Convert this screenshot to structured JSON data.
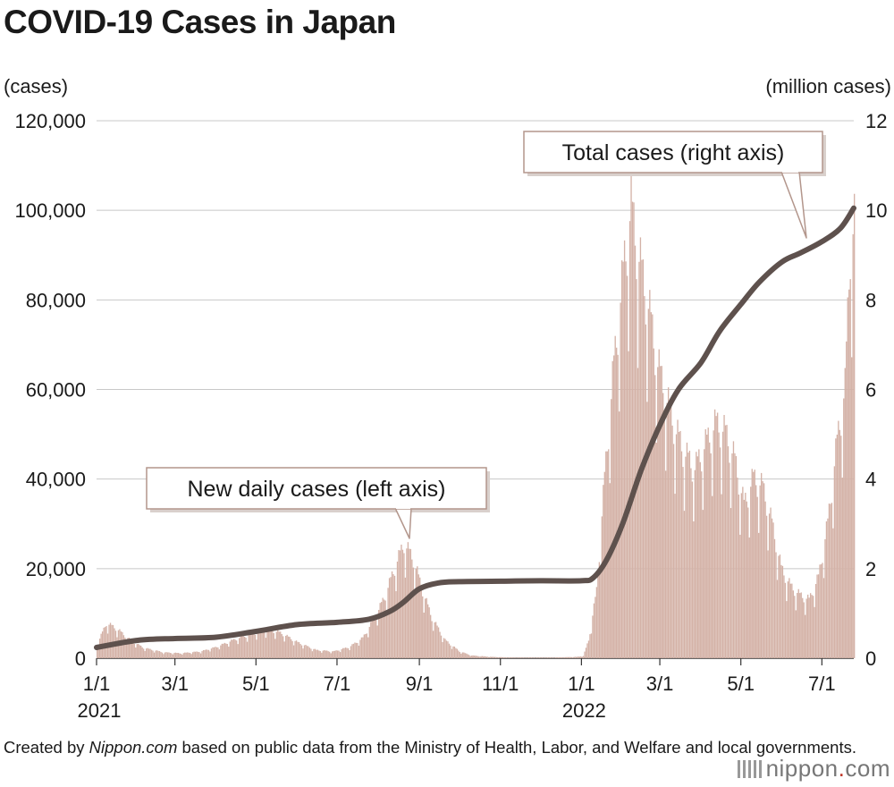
{
  "title": "COVID-19 Cases in Japan",
  "footer": {
    "credit_prefix": "Created by ",
    "credit_source": "Nippon.com",
    "credit_suffix": " based on public data from the Ministry of Health, Labor, and Welfare and local governments."
  },
  "logo": {
    "text": "nippon",
    "dot": ".",
    "suffix": "com"
  },
  "chart_data": {
    "type": "bar+line",
    "title": "COVID-19 Cases in Japan",
    "left_axis": {
      "unit_label": "(cases)",
      "ylim": [
        0,
        120000
      ],
      "ticks": [
        {
          "value": 0,
          "label": "0"
        },
        {
          "value": 20000,
          "label": "20,000"
        },
        {
          "value": 40000,
          "label": "40,000"
        },
        {
          "value": 60000,
          "label": "60,000"
        },
        {
          "value": 80000,
          "label": "80,000"
        },
        {
          "value": 100000,
          "label": "100,000"
        },
        {
          "value": 120000,
          "label": "120,000"
        }
      ]
    },
    "right_axis": {
      "unit_label": "(million cases)",
      "ylim": [
        0,
        12
      ],
      "ticks": [
        {
          "value": 0,
          "label": "0"
        },
        {
          "value": 2,
          "label": "2"
        },
        {
          "value": 4,
          "label": "4"
        },
        {
          "value": 6,
          "label": "6"
        },
        {
          "value": 8,
          "label": "8"
        },
        {
          "value": 10,
          "label": "10"
        },
        {
          "value": 12,
          "label": "12"
        }
      ]
    },
    "x_range": [
      "2021-01-01",
      "2022-07-25"
    ],
    "x_ticks": [
      {
        "date": "2021-01-01",
        "label": "1/1",
        "year": "2021"
      },
      {
        "date": "2021-03-01",
        "label": "3/1"
      },
      {
        "date": "2021-05-01",
        "label": "5/1"
      },
      {
        "date": "2021-07-01",
        "label": "7/1"
      },
      {
        "date": "2021-09-01",
        "label": "9/1"
      },
      {
        "date": "2021-11-01",
        "label": "11/1"
      },
      {
        "date": "2022-01-01",
        "label": "1/1",
        "year": "2022"
      },
      {
        "date": "2022-03-01",
        "label": "3/1"
      },
      {
        "date": "2022-05-01",
        "label": "5/1"
      },
      {
        "date": "2022-07-01",
        "label": "7/1"
      }
    ],
    "grid": true,
    "series": [
      {
        "name": "New daily cases (left axis)",
        "type": "bar",
        "axis": "left",
        "color": "#d4b2a7",
        "points": [
          [
            "2021-01-01",
            3000
          ],
          [
            "2021-01-08",
            7800
          ],
          [
            "2021-01-16",
            6500
          ],
          [
            "2021-01-26",
            4000
          ],
          [
            "2021-02-05",
            2300
          ],
          [
            "2021-02-20",
            1300
          ],
          [
            "2021-03-05",
            1100
          ],
          [
            "2021-03-20",
            1500
          ],
          [
            "2021-04-01",
            2500
          ],
          [
            "2021-04-15",
            4200
          ],
          [
            "2021-04-28",
            5500
          ],
          [
            "2021-05-10",
            6500
          ],
          [
            "2021-05-20",
            5500
          ],
          [
            "2021-06-01",
            3500
          ],
          [
            "2021-06-15",
            1800
          ],
          [
            "2021-06-28",
            1500
          ],
          [
            "2021-07-10",
            2500
          ],
          [
            "2021-07-20",
            4500
          ],
          [
            "2021-07-30",
            9500
          ],
          [
            "2021-08-06",
            14000
          ],
          [
            "2021-08-13",
            20000
          ],
          [
            "2021-08-20",
            25500
          ],
          [
            "2021-08-27",
            22000
          ],
          [
            "2021-09-03",
            15000
          ],
          [
            "2021-09-10",
            9000
          ],
          [
            "2021-09-20",
            4000
          ],
          [
            "2021-10-01",
            1500
          ],
          [
            "2021-10-10",
            600
          ],
          [
            "2021-10-25",
            300
          ],
          [
            "2021-11-10",
            150
          ],
          [
            "2021-12-10",
            150
          ],
          [
            "2021-12-28",
            300
          ],
          [
            "2022-01-02",
            500
          ],
          [
            "2022-01-06",
            4000
          ],
          [
            "2022-01-12",
            15000
          ],
          [
            "2022-01-18",
            40000
          ],
          [
            "2022-01-25",
            65000
          ],
          [
            "2022-02-02",
            88000
          ],
          [
            "2022-02-07",
            100000
          ],
          [
            "2022-02-12",
            90000
          ],
          [
            "2022-02-20",
            78000
          ],
          [
            "2022-02-27",
            65000
          ],
          [
            "2022-03-06",
            57000
          ],
          [
            "2022-03-13",
            50000
          ],
          [
            "2022-03-20",
            45000
          ],
          [
            "2022-03-27",
            42000
          ],
          [
            "2022-04-05",
            48000
          ],
          [
            "2022-04-12",
            52000
          ],
          [
            "2022-04-19",
            50000
          ],
          [
            "2022-04-26",
            44000
          ],
          [
            "2022-05-03",
            34000
          ],
          [
            "2022-05-10",
            40000
          ],
          [
            "2022-05-17",
            38000
          ],
          [
            "2022-05-24",
            30000
          ],
          [
            "2022-05-31",
            20000
          ],
          [
            "2022-06-07",
            16000
          ],
          [
            "2022-06-14",
            14000
          ],
          [
            "2022-06-21",
            13000
          ],
          [
            "2022-06-28",
            18000
          ],
          [
            "2022-07-05",
            30000
          ],
          [
            "2022-07-12",
            48000
          ],
          [
            "2022-07-18",
            60000
          ],
          [
            "2022-07-22",
            92000
          ],
          [
            "2022-07-25",
            96000
          ]
        ]
      },
      {
        "name": "Total cases (right axis)",
        "type": "line",
        "axis": "right",
        "color": "#5e514d",
        "points": [
          [
            "2021-01-01",
            0.24
          ],
          [
            "2021-02-01",
            0.4
          ],
          [
            "2021-03-01",
            0.44
          ],
          [
            "2021-04-01",
            0.47
          ],
          [
            "2021-05-01",
            0.6
          ],
          [
            "2021-06-01",
            0.75
          ],
          [
            "2021-07-01",
            0.8
          ],
          [
            "2021-07-25",
            0.87
          ],
          [
            "2021-08-10",
            1.05
          ],
          [
            "2021-08-20",
            1.25
          ],
          [
            "2021-09-01",
            1.55
          ],
          [
            "2021-09-15",
            1.68
          ],
          [
            "2021-10-01",
            1.71
          ],
          [
            "2021-11-01",
            1.72
          ],
          [
            "2021-12-01",
            1.73
          ],
          [
            "2022-01-01",
            1.73
          ],
          [
            "2022-01-10",
            1.8
          ],
          [
            "2022-01-20",
            2.2
          ],
          [
            "2022-02-01",
            3.0
          ],
          [
            "2022-02-15",
            4.2
          ],
          [
            "2022-03-01",
            5.2
          ],
          [
            "2022-03-15",
            6.0
          ],
          [
            "2022-04-01",
            6.6
          ],
          [
            "2022-04-15",
            7.3
          ],
          [
            "2022-05-01",
            7.9
          ],
          [
            "2022-05-15",
            8.4
          ],
          [
            "2022-06-01",
            8.85
          ],
          [
            "2022-06-15",
            9.05
          ],
          [
            "2022-07-01",
            9.3
          ],
          [
            "2022-07-15",
            9.6
          ],
          [
            "2022-07-25",
            10.05
          ]
        ]
      }
    ],
    "annotations": [
      {
        "text": "New daily cases (left axis)",
        "target": "bars"
      },
      {
        "text": "Total cases (right axis)",
        "target": "line"
      }
    ]
  }
}
